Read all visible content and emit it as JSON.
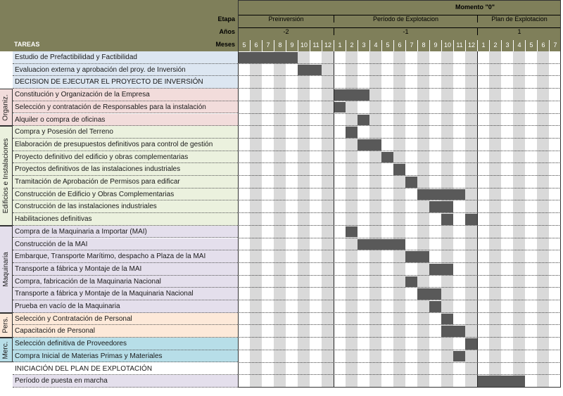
{
  "header": {
    "momento": "Momento \"0\"",
    "etapa_label": "Etapa",
    "anios_label": "Años",
    "meses_label": "Meses",
    "tareas_label": "TAREAS",
    "etapas": [
      "Preinversión",
      "Período de Explotacion",
      "Plan de Explotacion"
    ],
    "anios": [
      "-2",
      "-1",
      "1"
    ],
    "meses": [
      "5",
      "6",
      "7",
      "8",
      "9",
      "10",
      "11",
      "12",
      "1",
      "2",
      "3",
      "4",
      "5",
      "6",
      "7",
      "8",
      "9",
      "10",
      "11",
      "12",
      "1",
      "2",
      "3",
      "4",
      "5",
      "6",
      "7"
    ]
  },
  "groups": [
    "Organiz.",
    "Edificios e Instalaciones",
    "Maquinaria",
    "Pers.",
    "Merc."
  ],
  "tasks": [
    {
      "label": "Estudio de Prefactibilidad y Factibilidad",
      "color": "#dce6f1",
      "bars": [
        [
          0,
          5
        ]
      ]
    },
    {
      "label": "Evaluacion externa y aprobación del proy. de Inversión",
      "color": "#dce6f1",
      "bars": [
        [
          5,
          7
        ]
      ]
    },
    {
      "label": "DECISION DE EJECUTAR EL PROYECTO DE INVERSIÓN",
      "color": "#dce6f1",
      "bars": []
    },
    {
      "label": "Constitución y Organización de la Empresa",
      "color": "#f2dcdb",
      "bars": [
        [
          8,
          11
        ]
      ]
    },
    {
      "label": "Selección y contratación de Responsables para la instalación",
      "color": "#f2dcdb",
      "bars": [
        [
          8,
          9
        ]
      ]
    },
    {
      "label": "Alquiler o compra de oficinas",
      "color": "#f2dcdb",
      "bars": [
        [
          10,
          11
        ]
      ]
    },
    {
      "label": "Compra y Posesión del Terreno",
      "color": "#ebf1de",
      "bars": [
        [
          9,
          10
        ]
      ]
    },
    {
      "label": "Elaboración de presupuestos definitivos para control de gestión",
      "color": "#ebf1de",
      "bars": [
        [
          10,
          12
        ]
      ]
    },
    {
      "label": "Proyecto definitivo del edificio y obras complementarias",
      "color": "#ebf1de",
      "bars": [
        [
          12,
          13
        ]
      ]
    },
    {
      "label": "Proyectos definitivos de las instalaciones industriales",
      "color": "#ebf1de",
      "bars": [
        [
          13,
          14
        ]
      ]
    },
    {
      "label": "Tramitación de Aprobación de Permisos para edificar",
      "color": "#ebf1de",
      "bars": [
        [
          14,
          15
        ]
      ]
    },
    {
      "label": "Construcción de Edificio y Obras Complementarias",
      "color": "#ebf1de",
      "bars": [
        [
          15,
          19
        ]
      ]
    },
    {
      "label": "Construcción de las instalaciones industriales",
      "color": "#ebf1de",
      "bars": [
        [
          16,
          18
        ]
      ]
    },
    {
      "label": "Habilitaciones definitivas",
      "color": "#ebf1de",
      "bars": [
        [
          17,
          18
        ],
        [
          19,
          20
        ]
      ]
    },
    {
      "label": "Compra de la Maquinaria a Importar (MAI)",
      "color": "#e4dfec",
      "bars": [
        [
          9,
          10
        ]
      ]
    },
    {
      "label": "Construcción de la MAI",
      "color": "#e4dfec",
      "bars": [
        [
          10,
          14
        ]
      ]
    },
    {
      "label": "Embarque, Transporte Marítimo, despacho a Plaza de la MAI",
      "color": "#e4dfec",
      "bars": [
        [
          14,
          16
        ]
      ]
    },
    {
      "label": "Transporte a fábrica y Montaje de la MAI",
      "color": "#e4dfec",
      "bars": [
        [
          16,
          18
        ]
      ]
    },
    {
      "label": "Compra, fabricación de la Maquinaria Nacional",
      "color": "#e4dfec",
      "bars": [
        [
          14,
          15
        ]
      ]
    },
    {
      "label": "Transporte a fábrica y Montaje de la Maquinaria Nacional",
      "color": "#e4dfec",
      "bars": [
        [
          15,
          17
        ]
      ]
    },
    {
      "label": "Prueba en vacío de la Maquinaria",
      "color": "#e4dfec",
      "bars": [
        [
          16,
          17
        ]
      ]
    },
    {
      "label": "Selección y Contratación de Personal",
      "color": "#fde9d9",
      "bars": [
        [
          17,
          18
        ]
      ]
    },
    {
      "label": "Capacitación de Personal",
      "color": "#fde9d9",
      "bars": [
        [
          17,
          19
        ]
      ]
    },
    {
      "label": "Selección definitiva de Proveedores",
      "color": "#b7dee8",
      "bars": [
        [
          19,
          20
        ]
      ]
    },
    {
      "label": "Compra Inicial de Materias Primas y Materiales",
      "color": "#b7dee8",
      "bars": [
        [
          18,
          19
        ]
      ]
    },
    {
      "label": "INICIACIÓN DEL PLAN DE EXPLOTACIÓN",
      "color": "#ffffff",
      "bars": []
    },
    {
      "label": "Período de puesta en marcha",
      "color": "#e4dfec",
      "bars": [
        [
          20,
          24
        ]
      ]
    }
  ],
  "colors": {
    "header_bg": "#7f7f5a",
    "bar": "#595959",
    "gray_col": "#d9d9d9"
  }
}
